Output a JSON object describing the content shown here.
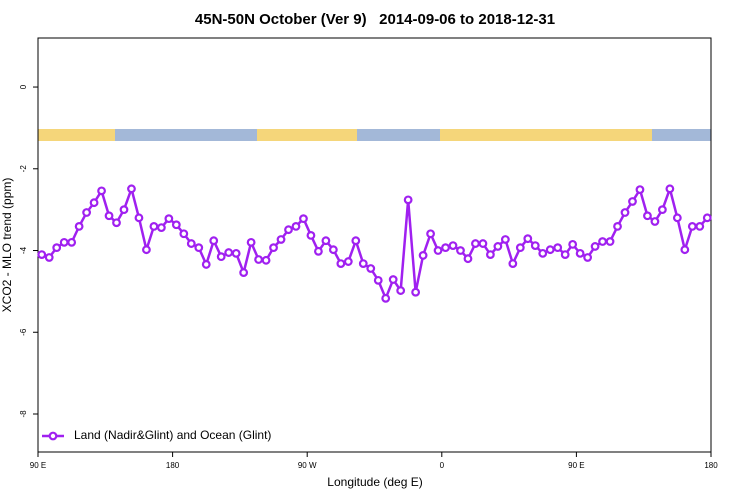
{
  "chart_data": {
    "type": "line",
    "title": "45N-50N October (Ver 9)   2014-09-06 to 2018-12-31",
    "x_label": "Longitude (deg E)",
    "y_label": "XCO2 - MLO trend (ppm)",
    "xlim": [
      90,
      540
    ],
    "xticks": [
      {
        "value": 90,
        "label": "90 E"
      },
      180,
      {
        "value": 270,
        "label": "90 W"
      },
      {
        "value": 360,
        "label": "0"
      },
      {
        "value": 450,
        "label": "90 E"
      },
      {
        "value": 540,
        "label": "180"
      }
    ],
    "ylim": [
      -8.93,
      1.2
    ],
    "yticks": [
      0,
      -2,
      -4,
      -6,
      -8
    ],
    "legend": "bottom-left",
    "x": [
      92.5,
      97.5,
      102.5,
      107.5,
      112.5,
      117.5,
      122.5,
      127.5,
      132.5,
      137.5,
      142.5,
      147.5,
      152.5,
      157.5,
      162.5,
      167.5,
      172.5,
      177.5,
      182.5,
      187.5,
      192.5,
      197.5,
      202.5,
      207.5,
      212.5,
      217.5,
      222.5,
      227.5,
      232.5,
      237.5,
      242.5,
      247.5,
      252.5,
      257.5,
      262.5,
      267.5,
      272.5,
      277.5,
      282.5,
      287.5,
      292.5,
      297.5,
      302.5,
      307.5,
      312.5,
      317.5,
      322.5,
      327.5,
      332.5,
      337.5,
      342.5,
      347.5,
      352.5,
      357.5,
      362.5,
      367.5,
      372.5,
      377.5,
      382.5,
      387.5,
      392.5,
      397.5,
      402.5,
      407.5,
      412.5,
      417.5,
      422.5,
      427.5,
      432.5,
      437.5,
      442.5,
      447.5,
      452.5,
      457.5,
      462.5,
      467.5,
      472.5,
      477.5,
      482.5,
      487.5,
      492.5,
      497.5,
      502.5,
      507.5,
      512.5,
      517.5,
      522.5,
      527.5,
      532.5,
      537.5
    ],
    "series": [
      {
        "name": "Land (Nadir&Glint) and Ocean (Glint)",
        "color": "#a020f0",
        "values": [
          -4.1,
          -4.17,
          -3.93,
          -3.8,
          -3.8,
          -3.41,
          -3.07,
          -2.83,
          -2.54,
          -3.15,
          -3.32,
          -3.0,
          -2.49,
          -3.2,
          -3.98,
          -3.41,
          -3.44,
          -3.22,
          -3.37,
          -3.59,
          -3.83,
          -3.93,
          -4.34,
          -3.76,
          -4.15,
          -4.05,
          -4.07,
          -4.54,
          -3.8,
          -4.22,
          -4.24,
          -3.93,
          -3.73,
          -3.49,
          -3.41,
          -3.22,
          -3.63,
          -4.02,
          -3.76,
          -3.98,
          -4.32,
          -4.27,
          -3.76,
          -4.32,
          -4.44,
          -4.73,
          -5.17,
          -4.71,
          -4.98,
          -2.76,
          -5.02,
          -4.12,
          -3.59,
          -4.0,
          -3.93,
          -3.88,
          -4.0,
          -4.2,
          -3.83,
          -3.83,
          -4.1,
          -3.9,
          -3.73,
          -4.32,
          -3.93,
          -3.71,
          -3.88,
          -4.07,
          -3.98,
          -3.93,
          -4.1,
          -3.85,
          -4.07,
          -4.17,
          -3.9,
          -3.78,
          -3.78,
          -3.41,
          -3.07,
          -2.8,
          -2.51,
          -3.15,
          -3.29,
          -3.0,
          -2.49,
          -3.2,
          -3.98,
          -3.41,
          -3.41,
          -3.2
        ]
      }
    ]
  }
}
